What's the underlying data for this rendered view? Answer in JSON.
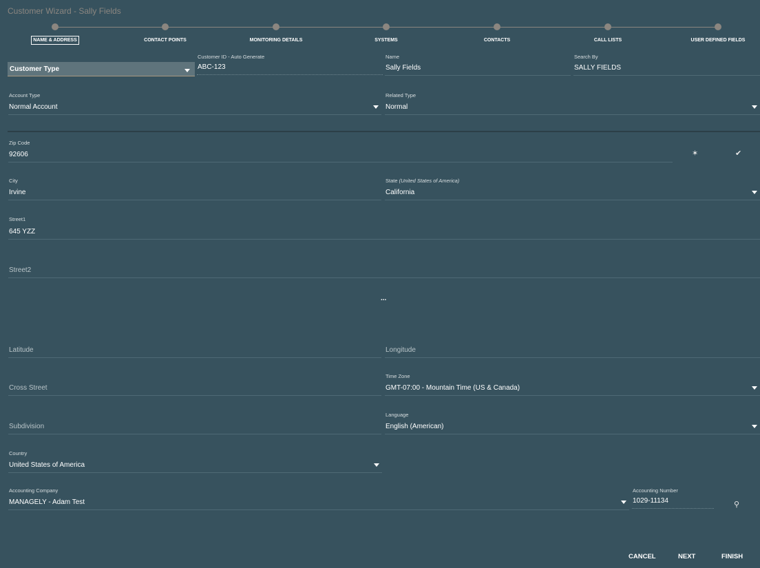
{
  "title": "Customer Wizard - Sally Fields",
  "steps": [
    "NAME & ADDRESS",
    "CONTACT POINTS",
    "MONITORING DETAILS",
    "SYSTEMS",
    "CONTACTS",
    "CALL LISTS",
    "USER DEFINED FIELDS"
  ],
  "active_step": 0,
  "fields": {
    "customer_type": "Customer Type",
    "customer_id": {
      "label": "Customer ID - Auto Generate",
      "value": "ABC-123"
    },
    "name": {
      "label": "Name",
      "value": "Sally Fields"
    },
    "search_by": {
      "label": "Search By",
      "value": "SALLY FIELDS"
    },
    "account_type": {
      "label": "Account Type",
      "value": "Normal Account"
    },
    "related_type": {
      "label": "Related Type",
      "value": "Normal"
    },
    "zip": {
      "label": "Zip Code",
      "value": "92606"
    },
    "city": {
      "label": "City",
      "value": "Irvine"
    },
    "state": {
      "label": "State",
      "label_note": "(United States of America)",
      "value": "California"
    },
    "street1": {
      "label": "Street1",
      "value": "645 YZZ"
    },
    "street2": {
      "placeholder": "Street2"
    },
    "more": "...",
    "latitude": {
      "placeholder": "Latitude"
    },
    "longitude": {
      "placeholder": "Longitude"
    },
    "cross_street": {
      "placeholder": "Cross Street"
    },
    "time_zone": {
      "label": "Time Zone",
      "value": "GMT-07:00 - Mountain Time (US & Canada)"
    },
    "subdivision": {
      "placeholder": "Subdivision"
    },
    "language": {
      "label": "Language",
      "value": "English (American)"
    },
    "country": {
      "label": "Country",
      "value": "United States of America"
    },
    "accounting_company": {
      "label": "Accounting Company",
      "value": "MANAGELY - Adam Test"
    },
    "accounting_number": {
      "label": "Accounting Number",
      "value": "1029-11134"
    }
  },
  "buttons": {
    "cancel": "CANCEL",
    "next": "NEXT",
    "finish": "FINISH"
  }
}
